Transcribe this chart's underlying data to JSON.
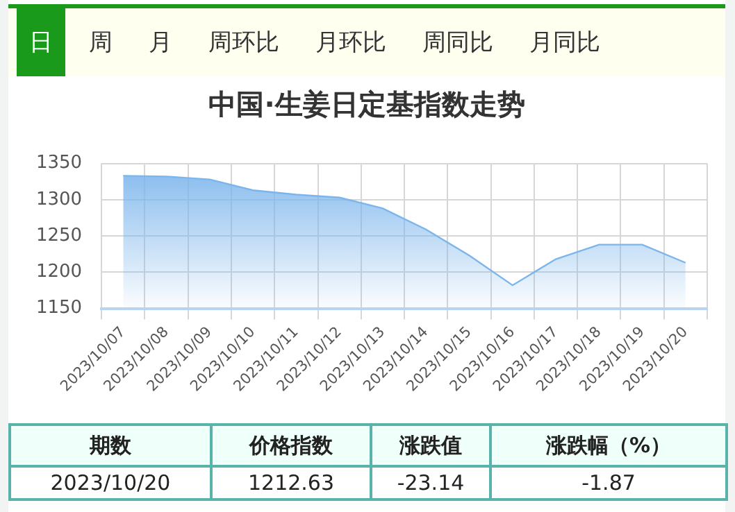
{
  "chart_data": {
    "type": "area",
    "title": "中国·生姜日定基指数走势",
    "categories": [
      "2023/10/07",
      "2023/10/08",
      "2023/10/09",
      "2023/10/10",
      "2023/10/11",
      "2023/10/12",
      "2023/10/13",
      "2023/10/14",
      "2023/10/15",
      "2023/10/16",
      "2023/10/17",
      "2023/10/18",
      "2023/10/19",
      "2023/10/20"
    ],
    "values": [
      1333,
      1332,
      1328,
      1313,
      1307,
      1303,
      1288,
      1259,
      1223,
      1182,
      1218,
      1238,
      1238,
      1213
    ],
    "color": "#7cb5ec",
    "ylim": [
      1150,
      1350
    ],
    "yticks": [
      1150,
      1200,
      1250,
      1300,
      1350
    ],
    "grid": true,
    "legend": false,
    "annotations": [
      "日",
      "周",
      "月",
      "周环比",
      "月环比",
      "周同比",
      "月同比",
      "期数",
      "价格指数",
      "涨跌值",
      "涨跌幅（%）",
      "2023/10/20",
      "1212.63",
      "-23.14",
      "-1.87"
    ]
  }
}
